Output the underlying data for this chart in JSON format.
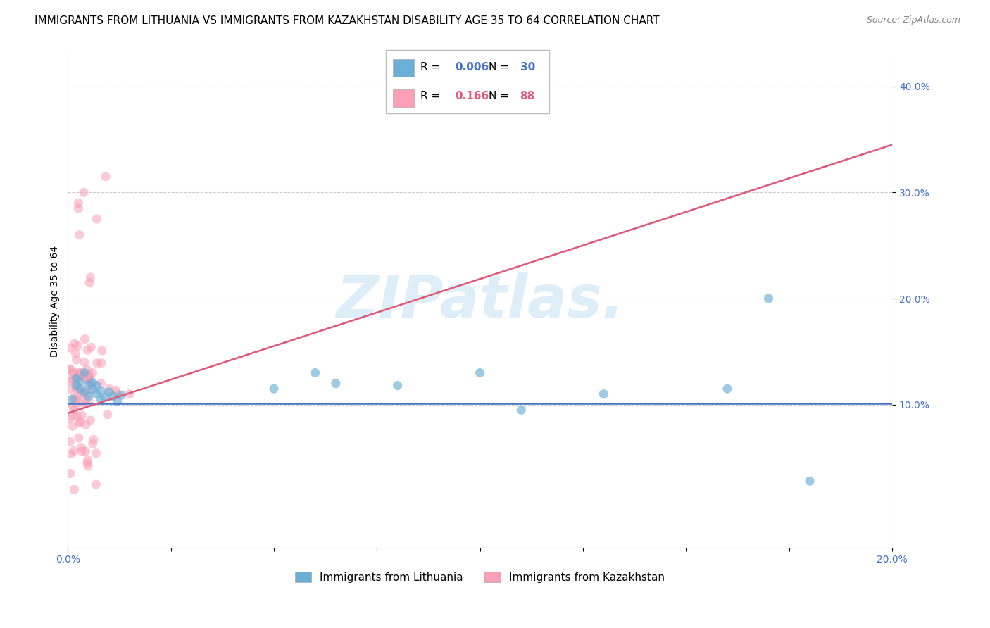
{
  "title": "IMMIGRANTS FROM LITHUANIA VS IMMIGRANTS FROM KAZAKHSTAN DISABILITY AGE 35 TO 64 CORRELATION CHART",
  "source": "Source: ZipAtlas.com",
  "ylabel_label": "Disability Age 35 to 64",
  "legend_entries": [
    {
      "label": "Immigrants from Lithuania",
      "color": "#a8c8f8",
      "R": "0.006",
      "N": "30"
    },
    {
      "label": "Immigrants from Kazakhstan",
      "color": "#f8b0c8",
      "R": "0.166",
      "N": "88"
    }
  ],
  "watermark": "ZIPatlas.",
  "xlim": [
    0.0,
    0.2
  ],
  "ylim": [
    -0.035,
    0.43
  ],
  "ytick_positions": [
    0.1,
    0.2,
    0.3,
    0.4
  ],
  "ytick_labels": [
    "10.0%",
    "20.0%",
    "30.0%",
    "40.0%"
  ],
  "xtick_positions": [
    0.0,
    0.025,
    0.05,
    0.075,
    0.1,
    0.125,
    0.15,
    0.175,
    0.2
  ],
  "xtick_labels": [
    "0.0%",
    "",
    "",
    "",
    "",
    "",
    "",
    "",
    "20.0%"
  ],
  "scatter_color_lit": "#6baed6",
  "scatter_color_kaz": "#fa9fb5",
  "trendline_lit_color": "#4472c4",
  "trendline_kaz_color": "#e05878",
  "trendline_kaz_dashed_color": "#e8b0c0",
  "grid_color": "#cccccc",
  "grid_linestyle": "--",
  "background_color": "#ffffff",
  "watermark_color": "#ddeef8",
  "title_fontsize": 11,
  "axis_label_fontsize": 10,
  "tick_fontsize": 10,
  "legend_fontsize": 11,
  "lit_trend_y0": 0.101,
  "lit_trend_y1": 0.101,
  "kaz_trend_y0": 0.092,
  "kaz_trend_y1": 0.345
}
